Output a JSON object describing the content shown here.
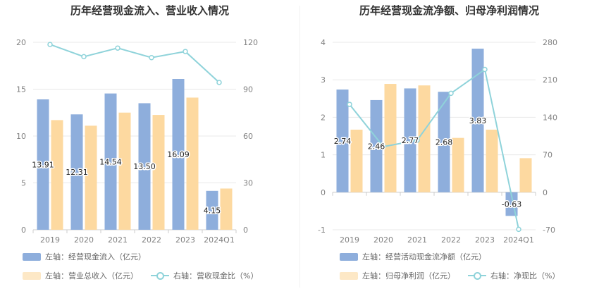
{
  "colors": {
    "bar_primary": "#8eaedc",
    "bar_secondary": "#fdd9a0",
    "line": "#8fd3da",
    "grid": "#e8e8e8"
  },
  "charts": [
    {
      "title": "历年经营现金流入、营业收入情况",
      "legend": {
        "bar1": "左轴：经营现金流入（亿元）",
        "bar2": "左轴：营业总收入（亿元）",
        "line": "右轴：营收现金比（%）"
      }
    },
    {
      "title": "历年经营现金流净额、归母净利润情况",
      "legend": {
        "bar1": "左轴：经营活动现金流净额（亿元）",
        "bar2": "左轴：归母净利润（亿元）",
        "line": "右轴：净现比（%）"
      }
    }
  ],
  "chart_data": [
    {
      "type": "bar",
      "categories": [
        "2019",
        "2020",
        "2021",
        "2022",
        "2023",
        "2024Q1"
      ],
      "series": [
        {
          "name": "左轴：经营现金流入（亿元）",
          "type": "bar",
          "axis": "left",
          "values": [
            13.91,
            12.31,
            14.54,
            13.5,
            16.09,
            4.15
          ],
          "labels": [
            "13.91",
            "12.31",
            "14.54",
            "13.50",
            "16.09",
            "4.15"
          ]
        },
        {
          "name": "左轴：营业总收入（亿元）",
          "type": "bar",
          "axis": "left",
          "values": [
            11.7,
            11.1,
            12.5,
            12.25,
            14.1,
            4.4
          ]
        },
        {
          "name": "右轴：营收现金比（%）",
          "type": "line",
          "axis": "right",
          "values": [
            118.6,
            110.8,
            116.3,
            110.2,
            114.1,
            94.3
          ]
        }
      ],
      "left_axis": {
        "min": 0,
        "max": 20,
        "ticks": [
          "0",
          "5",
          "10",
          "15",
          "20"
        ]
      },
      "right_axis": {
        "min": 0,
        "max": 120,
        "ticks": [
          "0",
          "30",
          "60",
          "90",
          "120"
        ]
      }
    },
    {
      "type": "bar",
      "categories": [
        "2019",
        "2020",
        "2021",
        "2022",
        "2023",
        "2024Q1"
      ],
      "series": [
        {
          "name": "左轴：经营活动现金流净额（亿元）",
          "type": "bar",
          "axis": "left",
          "values": [
            2.74,
            2.46,
            2.77,
            2.68,
            3.83,
            -0.63
          ],
          "labels": [
            "2.74",
            "2.46",
            "2.77",
            "2.68",
            "3.83",
            "-0.63"
          ]
        },
        {
          "name": "左轴：归母净利润（亿元）",
          "type": "bar",
          "axis": "left",
          "values": [
            1.67,
            2.89,
            2.85,
            1.45,
            1.67,
            0.91
          ]
        },
        {
          "name": "右轴：净现比（%）",
          "type": "line",
          "axis": "right",
          "values": [
            164.1,
            85.1,
            97.2,
            184.8,
            229.3,
            -69.2
          ]
        }
      ],
      "left_axis": {
        "min": -1,
        "max": 4,
        "ticks": [
          "-1",
          "0",
          "1",
          "2",
          "3",
          "4"
        ]
      },
      "right_axis": {
        "min": -70,
        "max": 280,
        "ticks": [
          "-70",
          "0",
          "70",
          "140",
          "210",
          "280"
        ]
      }
    }
  ]
}
